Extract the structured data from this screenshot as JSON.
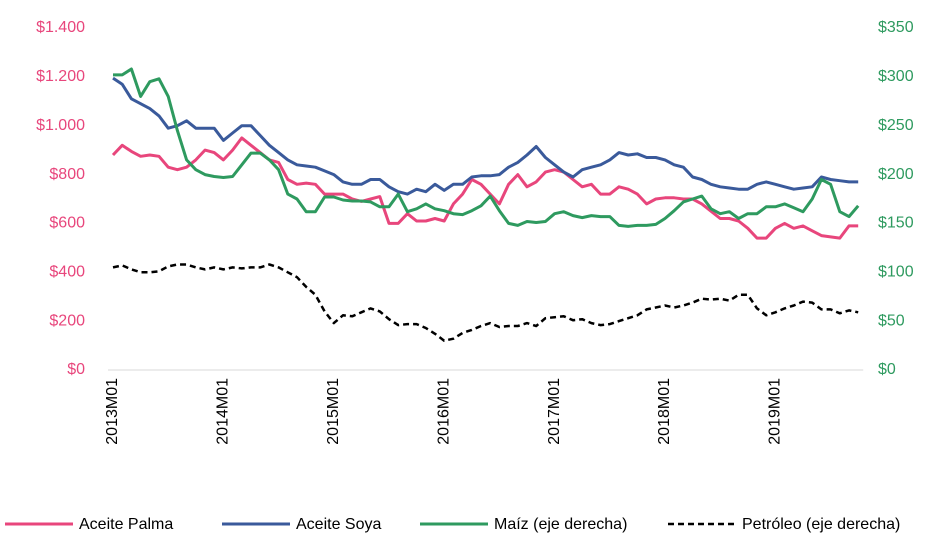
{
  "chart_data": {
    "type": "line",
    "categories": [
      "2013M01",
      null,
      null,
      null,
      null,
      null,
      null,
      null,
      null,
      null,
      null,
      null,
      "2014M01",
      null,
      null,
      null,
      null,
      null,
      null,
      null,
      null,
      null,
      null,
      null,
      "2015M01",
      null,
      null,
      null,
      null,
      null,
      null,
      null,
      null,
      null,
      null,
      null,
      "2016M01",
      null,
      null,
      null,
      null,
      null,
      null,
      null,
      null,
      null,
      null,
      null,
      "2017M01",
      null,
      null,
      null,
      null,
      null,
      null,
      null,
      null,
      null,
      null,
      null,
      "2018M01",
      null,
      null,
      null,
      null,
      null,
      null,
      null,
      null,
      null,
      null,
      null,
      "2019M01",
      null,
      null,
      null,
      null,
      null,
      null,
      null,
      null,
      null
    ],
    "series": [
      {
        "name": "Aceite Palma",
        "color": "#e8467c",
        "axis": "y",
        "dashed": false,
        "values": [
          880,
          920,
          895,
          875,
          880,
          875,
          830,
          820,
          830,
          860,
          900,
          890,
          860,
          900,
          950,
          920,
          890,
          860,
          850,
          780,
          760,
          765,
          760,
          720,
          720,
          720,
          700,
          690,
          700,
          710,
          600,
          600,
          640,
          610,
          610,
          620,
          610,
          680,
          720,
          780,
          760,
          720,
          680,
          760,
          800,
          750,
          770,
          810,
          820,
          810,
          780,
          750,
          760,
          720,
          720,
          750,
          740,
          720,
          680,
          700,
          705,
          705,
          700,
          700,
          680,
          650,
          620,
          620,
          610,
          580,
          540,
          540,
          580,
          600,
          580,
          590,
          570,
          550,
          545,
          540,
          590,
          590
        ]
      },
      {
        "name": "Aceite Soya",
        "color": "#3a5a9b",
        "axis": "y",
        "dashed": false,
        "values": [
          1195,
          1170,
          1110,
          1090,
          1070,
          1040,
          990,
          1000,
          1020,
          990,
          990,
          990,
          940,
          970,
          1000,
          1000,
          960,
          920,
          890,
          860,
          840,
          835,
          830,
          815,
          800,
          770,
          760,
          760,
          780,
          780,
          750,
          730,
          720,
          740,
          730,
          760,
          735,
          760,
          760,
          790,
          795,
          795,
          800,
          830,
          850,
          880,
          915,
          870,
          840,
          810,
          790,
          820,
          830,
          840,
          860,
          890,
          880,
          885,
          870,
          870,
          860,
          840,
          830,
          790,
          780,
          760,
          750,
          745,
          740,
          740,
          760,
          770,
          760,
          750,
          740,
          745,
          750,
          790,
          780,
          775,
          770,
          770
        ]
      },
      {
        "name": "Maíz (eje derecha)",
        "color": "#2e9a5f",
        "axis": "y2",
        "dashed": false,
        "values": [
          302,
          302,
          308,
          280,
          295,
          298,
          280,
          245,
          215,
          205,
          200,
          198,
          197,
          198,
          210,
          222,
          222,
          215,
          205,
          180,
          175,
          162,
          162,
          177,
          177,
          174,
          173,
          173,
          172,
          167,
          167,
          180,
          162,
          165,
          170,
          165,
          163,
          160,
          159,
          163,
          168,
          178,
          163,
          150,
          148,
          152,
          151,
          152,
          160,
          162,
          158,
          156,
          158,
          157,
          157,
          148,
          147,
          148,
          148,
          149,
          155,
          163,
          172,
          175,
          178,
          165,
          160,
          162,
          155,
          160,
          160,
          167,
          167,
          170,
          166,
          162,
          175,
          195,
          190,
          162,
          157,
          168
        ]
      },
      {
        "name": "Petróleo (eje derecha)",
        "color": "#000000",
        "axis": "y2",
        "dashed": true,
        "values": [
          105,
          107,
          103,
          100,
          100,
          101,
          106,
          108,
          108,
          105,
          103,
          105,
          103,
          105,
          104,
          105,
          105,
          108,
          105,
          100,
          95,
          85,
          77,
          60,
          48,
          56,
          55,
          59,
          63,
          60,
          52,
          46,
          47,
          47,
          43,
          37,
          30,
          32,
          38,
          41,
          45,
          48,
          44,
          45,
          45,
          48,
          45,
          53,
          54,
          55,
          51,
          52,
          48,
          46,
          47,
          50,
          53,
          56,
          62,
          64,
          66,
          64,
          66,
          69,
          73,
          72,
          73,
          71,
          77,
          77,
          63,
          56,
          59,
          63,
          66,
          70,
          69,
          62,
          62,
          58,
          61,
          59
        ]
      }
    ],
    "ylim": [
      0,
      1400
    ],
    "yticks": [
      {
        "value": 0,
        "label": "$0"
      },
      {
        "value": 200,
        "label": "$200"
      },
      {
        "value": 400,
        "label": "$400"
      },
      {
        "value": 600,
        "label": "$600"
      },
      {
        "value": 800,
        "label": "$800"
      },
      {
        "value": 1000,
        "label": "$1.000"
      },
      {
        "value": 1200,
        "label": "$1.200"
      },
      {
        "value": 1400,
        "label": "$1.400"
      }
    ],
    "y2lim": [
      0,
      350
    ],
    "y2ticks": [
      {
        "value": 0,
        "label": "$0"
      },
      {
        "value": 50,
        "label": "$50"
      },
      {
        "value": 100,
        "label": "$100"
      },
      {
        "value": 150,
        "label": "$150"
      },
      {
        "value": 200,
        "label": "$200"
      },
      {
        "value": 250,
        "label": "$250"
      },
      {
        "value": 300,
        "label": "$300"
      },
      {
        "value": 350,
        "label": "$350"
      }
    ],
    "ytick_color": "#e8467c",
    "y2tick_color": "#2e9a5f",
    "grid": false,
    "legend": "bottom"
  }
}
